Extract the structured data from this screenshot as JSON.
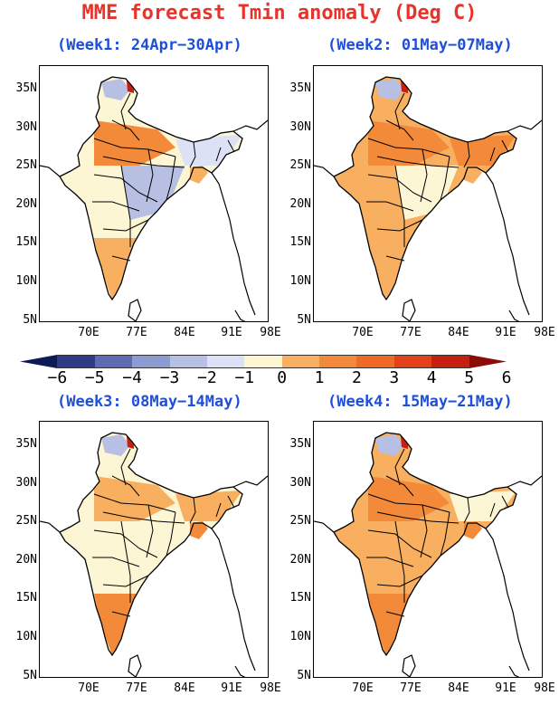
{
  "title": "MME forecast Tmin anomaly (Deg C)",
  "colors": {
    "title": "#e8332a",
    "week": "#1f4fd8",
    "levels": [
      "#101a52",
      "#2f3b87",
      "#5d6bb0",
      "#8e9bd0",
      "#b7bfe3",
      "#dde1f5",
      "#fdf6d4",
      "#f8b060",
      "#f28a3a",
      "#ef6a22",
      "#e4401a",
      "#c81e10",
      "#8a0b07"
    ]
  },
  "colorbar": {
    "ticks": [
      "−6",
      "−5",
      "−4",
      "−3",
      "−2",
      "−1",
      "0",
      "1",
      "2",
      "3",
      "4",
      "5",
      "6"
    ]
  },
  "lon_labels": [
    "70E",
    "77E",
    "84E",
    "91E",
    "98E"
  ],
  "lat_labels": [
    "35N",
    "30N",
    "25N",
    "20N",
    "15N",
    "10N",
    "5N"
  ],
  "panels": [
    {
      "label": "(Week1: 24Apr−30Apr)",
      "palette": [
        "#f28a3a",
        "#fdf6d4",
        "#b7bfe3",
        "#dde1f5",
        "#f8b060"
      ]
    },
    {
      "label": "(Week2: 01May−07May)",
      "palette": [
        "#f28a3a",
        "#f8b060",
        "#fdf6d4",
        "#f28a3a",
        "#f8b060"
      ]
    },
    {
      "label": "(Week3: 08May−14May)",
      "palette": [
        "#f8b060",
        "#fdf6d4",
        "#fdf6d4",
        "#f8b060",
        "#f28a3a"
      ]
    },
    {
      "label": "(Week4: 15May−21May)",
      "palette": [
        "#f28a3a",
        "#f8b060",
        "#f8b060",
        "#fdf6d4",
        "#f28a3a"
      ]
    }
  ]
}
